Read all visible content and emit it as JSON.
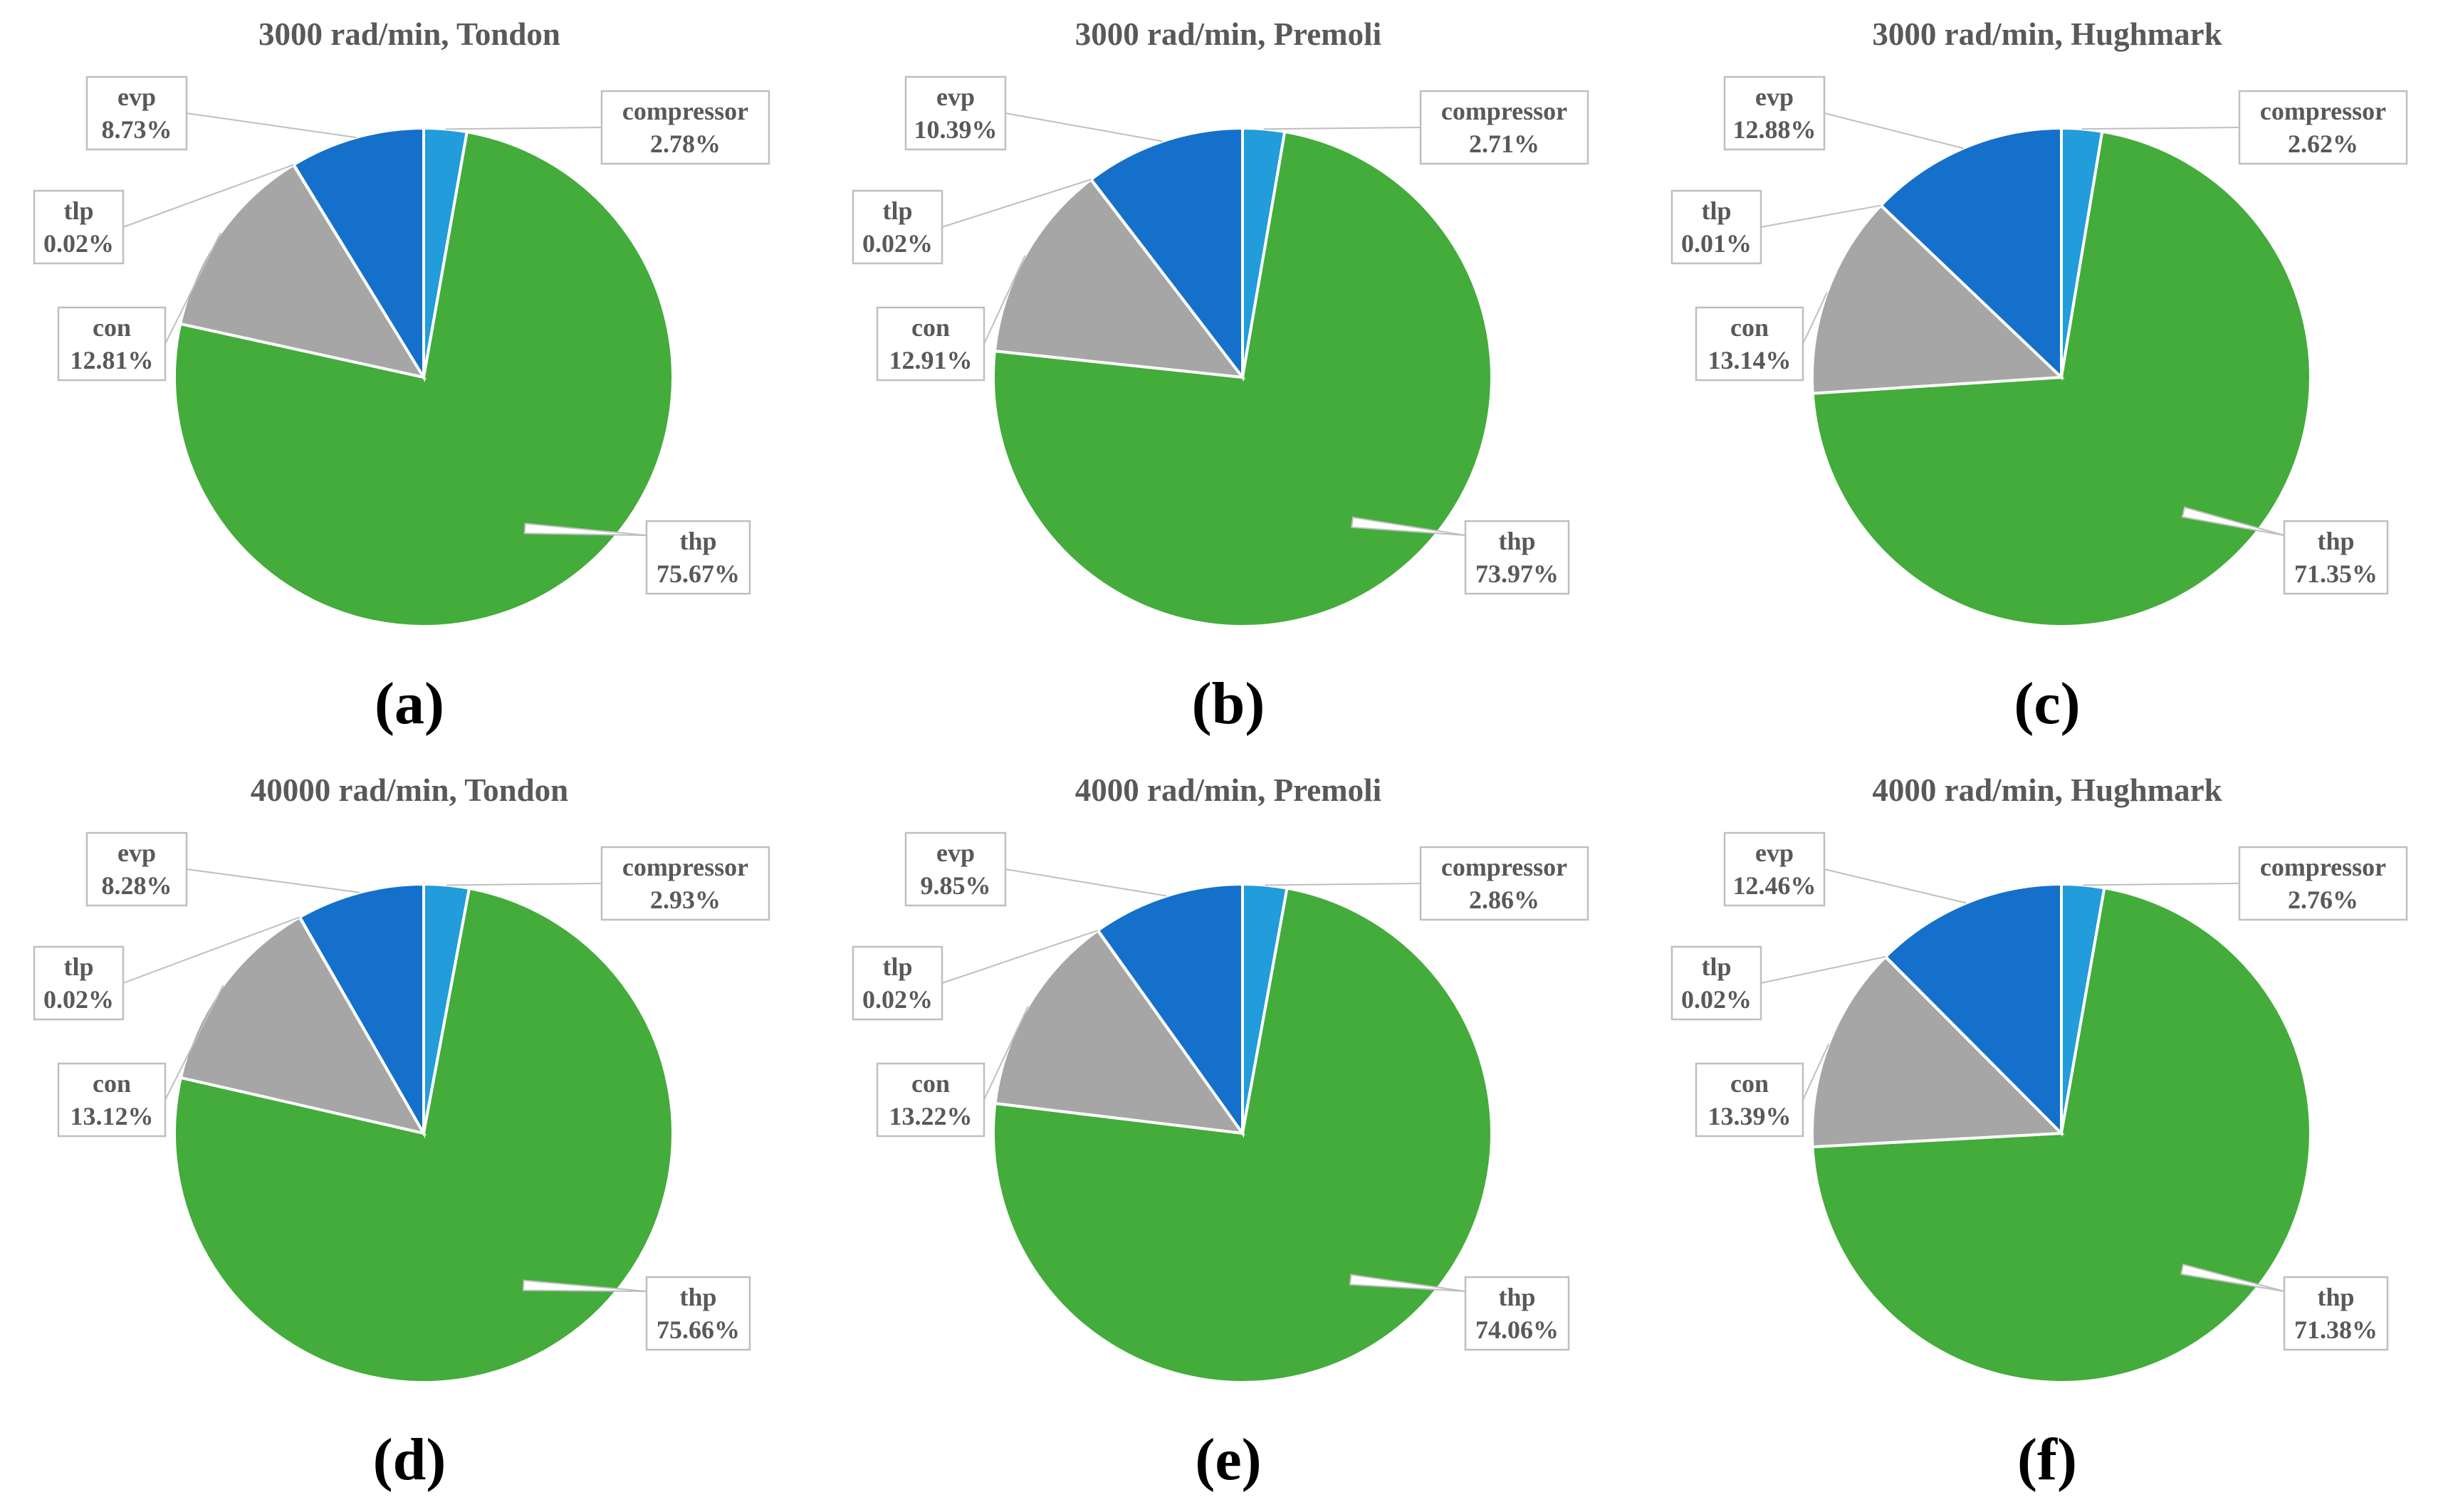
{
  "figure": {
    "colors": {
      "compressor": "#229CDA",
      "thp": "#43AC3B",
      "con": "#A6A6A6",
      "tlp": "#A6A6A6",
      "evp": "#1470CA"
    }
  },
  "chart_data": [
    {
      "type": "pie",
      "panel": "a",
      "title": "3000 rad/min, Tondon",
      "caption": "(a)",
      "slices": [
        {
          "name": "compressor",
          "value": 2.78,
          "label": "2.78%"
        },
        {
          "name": "thp",
          "value": 75.67,
          "label": "75.67%"
        },
        {
          "name": "con",
          "value": 12.81,
          "label": "12.81%"
        },
        {
          "name": "tlp",
          "value": 0.02,
          "label": "0.02%"
        },
        {
          "name": "evp",
          "value": 8.73,
          "label": "8.73%"
        }
      ]
    },
    {
      "type": "pie",
      "panel": "b",
      "title": "3000 rad/min, Premoli",
      "caption": "(b)",
      "slices": [
        {
          "name": "compressor",
          "value": 2.71,
          "label": "2.71%"
        },
        {
          "name": "thp",
          "value": 73.97,
          "label": "73.97%"
        },
        {
          "name": "con",
          "value": 12.91,
          "label": "12.91%"
        },
        {
          "name": "tlp",
          "value": 0.02,
          "label": "0.02%"
        },
        {
          "name": "evp",
          "value": 10.39,
          "label": "10.39%"
        }
      ]
    },
    {
      "type": "pie",
      "panel": "c",
      "title": "3000 rad/min, Hughmark",
      "caption": "(c)",
      "slices": [
        {
          "name": "compressor",
          "value": 2.62,
          "label": "2.62%"
        },
        {
          "name": "thp",
          "value": 71.35,
          "label": "71.35%"
        },
        {
          "name": "con",
          "value": 13.14,
          "label": "13.14%"
        },
        {
          "name": "tlp",
          "value": 0.01,
          "label": "0.01%"
        },
        {
          "name": "evp",
          "value": 12.88,
          "label": "12.88%"
        }
      ]
    },
    {
      "type": "pie",
      "panel": "d",
      "title": "40000 rad/min, Tondon",
      "caption": "(d)",
      "slices": [
        {
          "name": "compressor",
          "value": 2.93,
          "label": "2.93%"
        },
        {
          "name": "thp",
          "value": 75.66,
          "label": "75.66%"
        },
        {
          "name": "con",
          "value": 13.12,
          "label": "13.12%"
        },
        {
          "name": "tlp",
          "value": 0.02,
          "label": "0.02%"
        },
        {
          "name": "evp",
          "value": 8.28,
          "label": "8.28%"
        }
      ]
    },
    {
      "type": "pie",
      "panel": "e",
      "title": "4000 rad/min, Premoli",
      "caption": "(e)",
      "slices": [
        {
          "name": "compressor",
          "value": 2.86,
          "label": "2.86%"
        },
        {
          "name": "thp",
          "value": 74.06,
          "label": "74.06%"
        },
        {
          "name": "con",
          "value": 13.22,
          "label": "13.22%"
        },
        {
          "name": "tlp",
          "value": 0.02,
          "label": "0.02%"
        },
        {
          "name": "evp",
          "value": 9.85,
          "label": "9.85%"
        }
      ]
    },
    {
      "type": "pie",
      "panel": "f",
      "title": "4000 rad/min, Hughmark",
      "caption": "(f)",
      "slices": [
        {
          "name": "compressor",
          "value": 2.76,
          "label": "2.76%"
        },
        {
          "name": "thp",
          "value": 71.38,
          "label": "71.38%"
        },
        {
          "name": "con",
          "value": 13.39,
          "label": "13.39%"
        },
        {
          "name": "tlp",
          "value": 0.02,
          "label": "0.02%"
        },
        {
          "name": "evp",
          "value": 12.46,
          "label": "12.46%"
        }
      ]
    }
  ]
}
